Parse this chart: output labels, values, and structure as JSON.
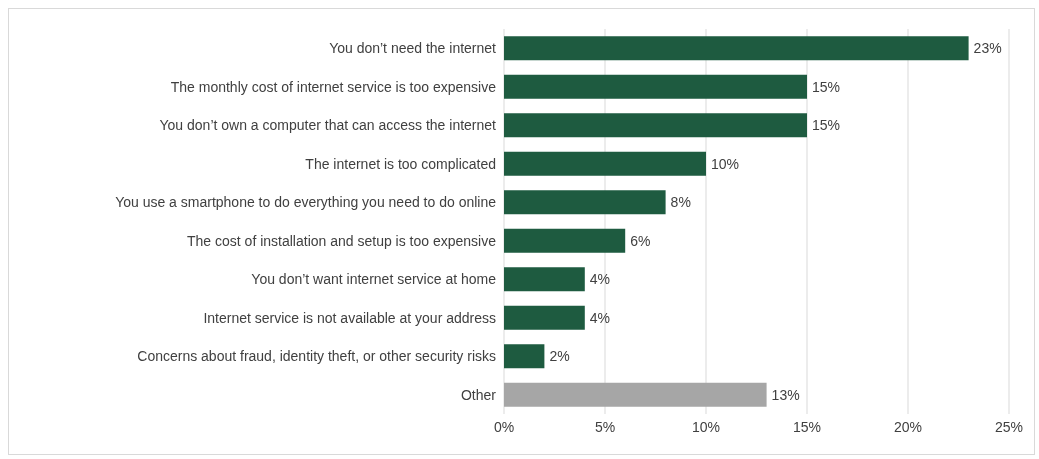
{
  "chart_data": {
    "type": "bar",
    "orientation": "horizontal",
    "categories": [
      "You don’t need the internet",
      "The monthly cost of internet service is too expensive",
      "You don’t own a computer that can access the internet",
      "The internet is too complicated",
      "You use a smartphone to do everything you need to do online",
      "The cost of installation and setup is too expensive",
      "You don’t want internet service at home",
      "Internet service is not available at your address",
      "Concerns about fraud, identity theft, or other security risks",
      "Other"
    ],
    "values": [
      23,
      15,
      15,
      10,
      8,
      6,
      4,
      4,
      2,
      13
    ],
    "value_labels": [
      "23%",
      "15%",
      "15%",
      "10%",
      "8%",
      "6%",
      "4%",
      "4%",
      "2%",
      "13%"
    ],
    "colors": [
      "#1e5b40",
      "#1e5b40",
      "#1e5b40",
      "#1e5b40",
      "#1e5b40",
      "#1e5b40",
      "#1e5b40",
      "#1e5b40",
      "#1e5b40",
      "#a6a6a6"
    ],
    "xlim": [
      0,
      25
    ],
    "xticks": [
      {
        "value": 0,
        "label": "0%"
      },
      {
        "value": 5,
        "label": "5%"
      },
      {
        "value": 10,
        "label": "10%"
      },
      {
        "value": 15,
        "label": "15%"
      },
      {
        "value": 20,
        "label": "20%"
      },
      {
        "value": 25,
        "label": "25%"
      }
    ],
    "grid": "x"
  }
}
